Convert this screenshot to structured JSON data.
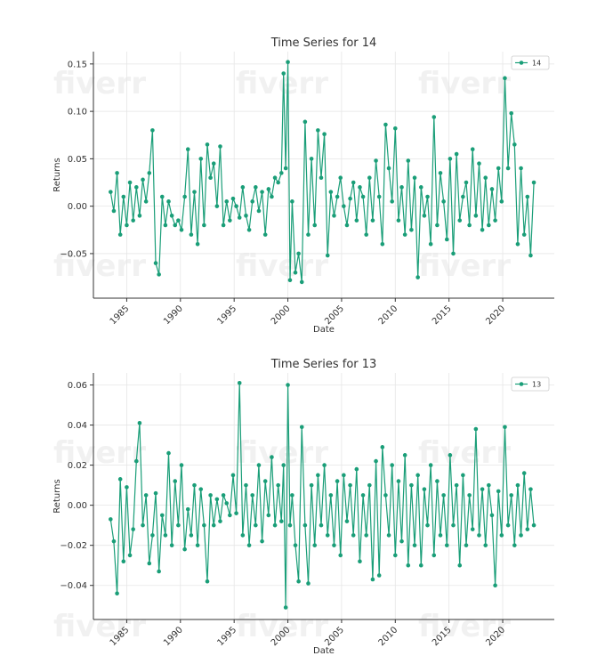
{
  "watermark": "fiverr",
  "chart_data": [
    {
      "type": "line",
      "title": "Time Series for 14",
      "xlabel": "Date",
      "ylabel": "Returns",
      "xlim": [
        1981.9,
        2024.8
      ],
      "ylim": [
        -0.097,
        0.163
      ],
      "xticks": [
        1985,
        1990,
        1995,
        2000,
        2005,
        2010,
        2015,
        2020
      ],
      "yticks": [
        -0.05,
        0.0,
        0.05,
        0.1,
        0.15
      ],
      "ytick_labels": [
        "−0.05",
        "0.00",
        "0.05",
        "0.10",
        "0.15"
      ],
      "grid": true,
      "legend": "top-right",
      "series": [
        {
          "name": "14",
          "color": "#1a9e78",
          "marker": "circle",
          "x": [
            1983.5,
            1983.8,
            1984.1,
            1984.4,
            1984.7,
            1985.0,
            1985.3,
            1985.6,
            1985.9,
            1986.2,
            1986.5,
            1986.8,
            1987.1,
            1987.4,
            1987.7,
            1988.0,
            1988.3,
            1988.6,
            1988.9,
            1989.2,
            1989.5,
            1989.8,
            1990.1,
            1990.4,
            1990.7,
            1991.0,
            1991.3,
            1991.6,
            1991.9,
            1992.2,
            1992.5,
            1992.8,
            1993.1,
            1993.4,
            1993.7,
            1994.0,
            1994.3,
            1994.6,
            1994.9,
            1995.2,
            1995.5,
            1995.8,
            1996.1,
            1996.4,
            1996.7,
            1997.0,
            1997.3,
            1997.6,
            1997.9,
            1998.2,
            1998.5,
            1998.8,
            1999.1,
            1999.4,
            1999.6,
            1999.8,
            2000.0,
            2000.2,
            2000.4,
            2000.7,
            2001.0,
            2001.3,
            2001.6,
            2001.9,
            2002.2,
            2002.5,
            2002.8,
            2003.1,
            2003.4,
            2003.7,
            2004.0,
            2004.3,
            2004.6,
            2004.9,
            2005.2,
            2005.5,
            2005.8,
            2006.1,
            2006.4,
            2006.7,
            2007.0,
            2007.3,
            2007.6,
            2007.9,
            2008.2,
            2008.5,
            2008.8,
            2009.1,
            2009.4,
            2009.7,
            2010.0,
            2010.3,
            2010.6,
            2010.9,
            2011.2,
            2011.5,
            2011.8,
            2012.1,
            2012.4,
            2012.7,
            2013.0,
            2013.3,
            2013.6,
            2013.9,
            2014.2,
            2014.5,
            2014.8,
            2015.1,
            2015.4,
            2015.7,
            2016.0,
            2016.3,
            2016.6,
            2016.9,
            2017.2,
            2017.5,
            2017.8,
            2018.1,
            2018.4,
            2018.7,
            2019.0,
            2019.3,
            2019.6,
            2019.9,
            2020.2,
            2020.5,
            2020.8,
            2021.1,
            2021.4,
            2021.7,
            2022.0,
            2022.3,
            2022.6,
            2022.9
          ],
          "y": [
            0.015,
            -0.005,
            0.035,
            -0.03,
            0.01,
            -0.02,
            0.025,
            -0.015,
            0.02,
            -0.01,
            0.028,
            0.005,
            0.035,
            0.08,
            -0.06,
            -0.072,
            0.01,
            -0.02,
            0.005,
            -0.01,
            -0.02,
            -0.015,
            -0.025,
            0.01,
            0.06,
            -0.03,
            0.015,
            -0.04,
            0.05,
            -0.02,
            0.065,
            0.03,
            0.045,
            0.0,
            0.063,
            -0.02,
            0.005,
            -0.015,
            0.008,
            0.0,
            -0.012,
            0.02,
            -0.01,
            -0.025,
            0.005,
            0.02,
            -0.005,
            0.015,
            -0.03,
            0.018,
            0.01,
            0.03,
            0.025,
            0.035,
            0.14,
            0.04,
            0.152,
            -0.078,
            0.005,
            -0.07,
            -0.05,
            -0.08,
            0.089,
            -0.03,
            0.05,
            -0.02,
            0.08,
            0.03,
            0.076,
            -0.052,
            0.015,
            -0.01,
            0.01,
            0.03,
            0.0,
            -0.02,
            0.008,
            0.025,
            -0.015,
            0.02,
            0.01,
            -0.03,
            0.03,
            -0.015,
            0.048,
            0.01,
            -0.04,
            0.086,
            0.04,
            0.005,
            0.082,
            -0.015,
            0.02,
            -0.03,
            0.048,
            -0.025,
            0.03,
            -0.075,
            0.02,
            -0.01,
            0.01,
            -0.04,
            0.094,
            -0.02,
            0.035,
            0.005,
            -0.035,
            0.05,
            -0.05,
            0.055,
            -0.015,
            0.01,
            0.025,
            -0.02,
            0.06,
            -0.01,
            0.045,
            -0.025,
            0.03,
            -0.02,
            0.018,
            -0.015,
            0.04,
            0.005,
            0.135,
            0.04,
            0.098,
            0.065,
            -0.04,
            0.04,
            -0.03,
            0.01,
            -0.052,
            0.025
          ]
        }
      ]
    },
    {
      "type": "line",
      "title": "Time Series for 13",
      "xlabel": "Date",
      "ylabel": "Returns",
      "xlim": [
        1981.9,
        2024.8
      ],
      "ylim": [
        -0.057,
        0.066
      ],
      "xticks": [
        1985,
        1990,
        1995,
        2000,
        2005,
        2010,
        2015,
        2020
      ],
      "yticks": [
        -0.04,
        -0.02,
        0.0,
        0.02,
        0.04,
        0.06
      ],
      "ytick_labels": [
        "−0.04",
        "−0.02",
        "0.00",
        "0.02",
        "0.04",
        "0.06"
      ],
      "grid": true,
      "legend": "top-right",
      "series": [
        {
          "name": "13",
          "color": "#1a9e78",
          "marker": "circle",
          "x": [
            1983.5,
            1983.8,
            1984.1,
            1984.4,
            1984.7,
            1985.0,
            1985.3,
            1985.6,
            1985.9,
            1986.2,
            1986.5,
            1986.8,
            1987.1,
            1987.4,
            1987.7,
            1988.0,
            1988.3,
            1988.6,
            1988.9,
            1989.2,
            1989.5,
            1989.8,
            1990.1,
            1990.4,
            1990.7,
            1991.0,
            1991.3,
            1991.6,
            1991.9,
            1992.2,
            1992.5,
            1992.8,
            1993.1,
            1993.4,
            1993.7,
            1994.0,
            1994.3,
            1994.6,
            1994.9,
            1995.2,
            1995.5,
            1995.8,
            1996.1,
            1996.4,
            1996.7,
            1997.0,
            1997.3,
            1997.6,
            1997.9,
            1998.2,
            1998.5,
            1998.8,
            1999.1,
            1999.4,
            1999.6,
            1999.8,
            2000.0,
            2000.2,
            2000.4,
            2000.7,
            2001.0,
            2001.3,
            2001.6,
            2001.9,
            2002.2,
            2002.5,
            2002.8,
            2003.1,
            2003.4,
            2003.7,
            2004.0,
            2004.3,
            2004.6,
            2004.9,
            2005.2,
            2005.5,
            2005.8,
            2006.1,
            2006.4,
            2006.7,
            2007.0,
            2007.3,
            2007.6,
            2007.9,
            2008.2,
            2008.5,
            2008.8,
            2009.1,
            2009.4,
            2009.7,
            2010.0,
            2010.3,
            2010.6,
            2010.9,
            2011.2,
            2011.5,
            2011.8,
            2012.1,
            2012.4,
            2012.7,
            2013.0,
            2013.3,
            2013.6,
            2013.9,
            2014.2,
            2014.5,
            2014.8,
            2015.1,
            2015.4,
            2015.7,
            2016.0,
            2016.3,
            2016.6,
            2016.9,
            2017.2,
            2017.5,
            2017.8,
            2018.1,
            2018.4,
            2018.7,
            2019.0,
            2019.3,
            2019.6,
            2019.9,
            2020.2,
            2020.5,
            2020.8,
            2021.1,
            2021.4,
            2021.7,
            2022.0,
            2022.3,
            2022.6,
            2022.9
          ],
          "y": [
            -0.007,
            -0.018,
            -0.044,
            0.013,
            -0.028,
            0.009,
            -0.025,
            -0.012,
            0.022,
            0.041,
            -0.01,
            0.005,
            -0.029,
            -0.015,
            0.006,
            -0.033,
            -0.005,
            -0.015,
            0.026,
            -0.02,
            0.012,
            -0.01,
            0.02,
            -0.022,
            -0.002,
            -0.015,
            0.01,
            -0.02,
            0.008,
            -0.01,
            -0.038,
            0.005,
            -0.01,
            0.003,
            -0.008,
            0.005,
            0.001,
            -0.005,
            0.015,
            -0.004,
            0.061,
            -0.015,
            0.01,
            -0.02,
            0.005,
            -0.01,
            0.02,
            -0.018,
            0.012,
            -0.005,
            0.024,
            -0.01,
            0.01,
            -0.008,
            0.02,
            -0.051,
            0.06,
            -0.01,
            0.005,
            -0.02,
            -0.038,
            0.039,
            -0.01,
            -0.039,
            0.01,
            -0.02,
            0.015,
            -0.01,
            0.02,
            -0.015,
            0.005,
            -0.02,
            0.012,
            -0.025,
            0.015,
            -0.008,
            0.01,
            -0.015,
            0.018,
            -0.028,
            0.005,
            -0.015,
            0.01,
            -0.037,
            0.022,
            -0.035,
            0.029,
            0.005,
            -0.015,
            0.02,
            -0.025,
            0.012,
            -0.018,
            0.025,
            -0.03,
            0.01,
            -0.02,
            0.015,
            -0.03,
            0.008,
            -0.01,
            0.02,
            -0.025,
            0.012,
            -0.015,
            0.005,
            -0.02,
            0.025,
            -0.01,
            0.01,
            -0.03,
            0.015,
            -0.02,
            0.005,
            -0.012,
            0.038,
            -0.015,
            0.008,
            -0.02,
            0.01,
            -0.005,
            -0.04,
            0.007,
            -0.015,
            0.039,
            -0.01,
            0.005,
            -0.02,
            0.01,
            -0.015,
            0.016,
            -0.012,
            0.008,
            -0.01
          ]
        }
      ]
    }
  ]
}
